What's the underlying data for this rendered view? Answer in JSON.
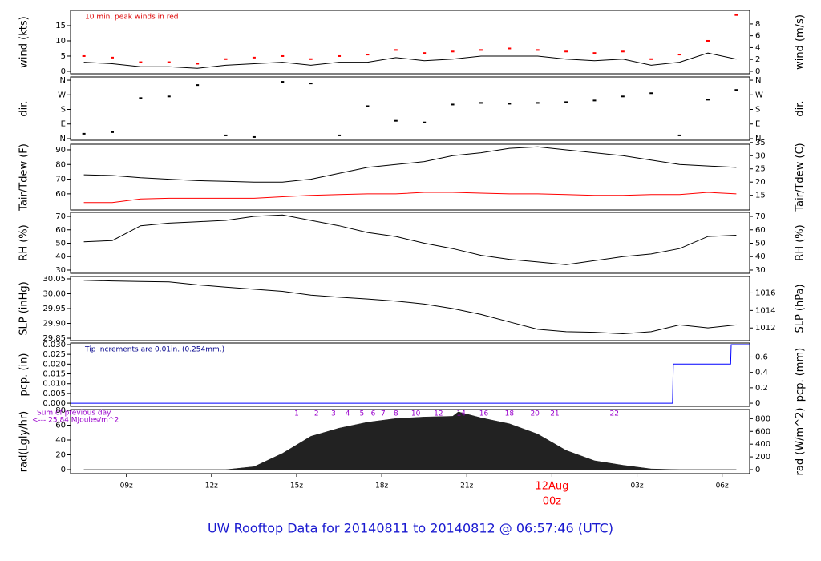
{
  "title": "UW Rooftop Data for 20140811  to  20140812 @ 06:57:46  (UTC)",
  "chart_data": [
    {
      "type": "line",
      "ylabel": "wind (kts)",
      "y2label": "wind (m/s)",
      "annotation": "10 min. peak winds in red",
      "annotation_color": "#dd0000",
      "xlim": [
        7.03,
        30.97
      ],
      "ylim": [
        -0.8,
        20
      ],
      "yticks": [
        0,
        5,
        10,
        15
      ],
      "y2lim": [
        -0.41,
        10.29
      ],
      "y2ticks": [
        0,
        2,
        4,
        6,
        8
      ],
      "x": [
        7.5,
        8.5,
        9.5,
        10.5,
        11.5,
        12.5,
        13.5,
        14.5,
        15.5,
        16.5,
        17.5,
        18.5,
        19.5,
        20.5,
        21.5,
        22.5,
        23.5,
        24.5,
        25.5,
        26.5,
        27.5,
        28.5,
        29.5,
        30.5
      ],
      "series": [
        {
          "name": "wind",
          "type": "line",
          "color": "#000000",
          "values": [
            3,
            2.5,
            1.5,
            1.5,
            1,
            2,
            2.5,
            3,
            2,
            3,
            3,
            4.5,
            3.5,
            4,
            5,
            5,
            5,
            4,
            3.5,
            4,
            2,
            3,
            6,
            4
          ]
        },
        {
          "name": "peak",
          "type": "scatter",
          "color": "#ff0000",
          "values": [
            5,
            4.5,
            3,
            3,
            2.5,
            4,
            4.5,
            5,
            4,
            5,
            5.5,
            7,
            6,
            6.5,
            7,
            7.5,
            7,
            6.5,
            6,
            6.5,
            4,
            5.5,
            10,
            18.5
          ]
        }
      ]
    },
    {
      "type": "scatter",
      "ylabel": "dir.",
      "y2label": "dir.",
      "xlim": [
        7.03,
        30.97
      ],
      "ylim": [
        -10,
        380
      ],
      "yticks": [
        {
          "value": 360,
          "label": "N"
        },
        {
          "value": 270,
          "label": "W"
        },
        {
          "value": 180,
          "label": "S"
        },
        {
          "value": 90,
          "label": "E"
        },
        {
          "value": 0,
          "label": "N"
        }
      ],
      "y2lim": [
        -10,
        380
      ],
      "y2ticks": [
        {
          "value": 360,
          "label": "N"
        },
        {
          "value": 270,
          "label": "W"
        },
        {
          "value": 180,
          "label": "S"
        },
        {
          "value": 90,
          "label": "E"
        },
        {
          "value": 0,
          "label": "N"
        }
      ],
      "x": [
        7.5,
        8.5,
        9.5,
        10.5,
        11.5,
        12.5,
        13.5,
        14.5,
        15.5,
        16.5,
        17.5,
        18.5,
        19.5,
        20.5,
        21.5,
        22.5,
        23.5,
        24.5,
        25.5,
        26.5,
        27.5,
        28.5,
        29.5,
        30.5
      ],
      "series": [
        {
          "name": "dir",
          "type": "scatter",
          "color": "#000000",
          "values": [
            30,
            40,
            250,
            260,
            330,
            20,
            10,
            350,
            340,
            20,
            200,
            110,
            100,
            210,
            220,
            215,
            220,
            225,
            235,
            260,
            280,
            20,
            240,
            300
          ]
        }
      ]
    },
    {
      "type": "line",
      "ylabel": "Tair/Tdew (F)",
      "y2label": "Tair/Tdew (C)",
      "xlim": [
        7.03,
        30.97
      ],
      "ylim": [
        49,
        93.8
      ],
      "yticks": [
        60,
        70,
        80,
        90
      ],
      "y2lim": [
        9.44,
        34.33
      ],
      "y2ticks": [
        15,
        20,
        25,
        30,
        35
      ],
      "x": [
        7.5,
        8.5,
        9.5,
        10.5,
        11.5,
        12.5,
        13.5,
        14.5,
        15.5,
        16.5,
        17.5,
        18.5,
        19.5,
        20.5,
        21.5,
        22.5,
        23.5,
        24.5,
        25.5,
        26.5,
        27.5,
        28.5,
        29.5,
        30.5
      ],
      "series": [
        {
          "name": "Tair",
          "type": "line",
          "color": "#000000",
          "values": [
            73,
            72.5,
            71,
            70,
            69,
            68.5,
            68,
            68,
            70,
            74,
            78,
            80,
            82,
            86,
            88,
            91,
            92,
            90,
            88,
            86,
            83,
            80,
            79,
            78
          ]
        },
        {
          "name": "Tdew",
          "type": "line",
          "color": "#ff0000",
          "values": [
            54,
            54,
            56.5,
            57,
            57,
            57,
            57,
            58,
            59,
            59.5,
            60,
            60,
            61,
            61,
            60.5,
            60,
            60,
            59.5,
            59,
            59,
            59.5,
            59.5,
            61,
            60
          ]
        }
      ]
    },
    {
      "type": "line",
      "ylabel": "RH (%)",
      "y2label": "RH (%)",
      "xlim": [
        7.03,
        30.97
      ],
      "ylim": [
        27.6,
        73
      ],
      "yticks": [
        30,
        40,
        50,
        60,
        70
      ],
      "y2lim": [
        27.6,
        73
      ],
      "y2ticks": [
        30,
        40,
        50,
        60,
        70
      ],
      "x": [
        7.5,
        8.5,
        9.5,
        10.5,
        11.5,
        12.5,
        13.5,
        14.5,
        15.5,
        16.5,
        17.5,
        18.5,
        19.5,
        20.5,
        21.5,
        22.5,
        23.5,
        24.5,
        25.5,
        26.5,
        27.5,
        28.5,
        29.5,
        30.5
      ],
      "series": [
        {
          "name": "RH",
          "type": "line",
          "color": "#000000",
          "values": [
            51,
            52,
            63,
            65,
            66,
            67,
            70,
            71,
            67,
            63,
            58,
            55,
            50,
            46,
            41,
            38,
            36,
            34,
            37,
            40,
            42,
            46,
            55,
            56
          ]
        }
      ]
    },
    {
      "type": "line",
      "ylabel": "SLP (inHg)",
      "y2label": "SLP (hPa)",
      "xlim": [
        7.03,
        30.97
      ],
      "ylim": [
        29.842,
        30.058
      ],
      "yticks": [
        30.05,
        {
          "value": 30,
          "label": "30.00"
        },
        29.95,
        {
          "value": 29.9,
          "label": "29.90"
        },
        29.85
      ],
      "y2lim": [
        1010.56,
        1017.87
      ],
      "y2ticks": [
        1012,
        1014,
        1016
      ],
      "x": [
        7.5,
        8.5,
        9.5,
        10.5,
        11.5,
        12.5,
        13.5,
        14.5,
        15.5,
        16.5,
        17.5,
        18.5,
        19.5,
        20.5,
        21.5,
        22.5,
        23.5,
        24.5,
        25.5,
        26.5,
        27.5,
        28.5,
        29.5,
        30.5
      ],
      "series": [
        {
          "name": "SLP",
          "type": "line",
          "color": "#000000",
          "values": [
            30.045,
            30.043,
            30.041,
            30.04,
            30.03,
            30.022,
            30.015,
            30.008,
            29.995,
            29.988,
            29.982,
            29.975,
            29.965,
            29.95,
            29.93,
            29.905,
            29.88,
            29.872,
            29.87,
            29.865,
            29.872,
            29.895,
            29.885,
            29.895
          ]
        }
      ]
    },
    {
      "type": "line",
      "ylabel": "pcp. (in)",
      "y2label": "pcp. (mm)",
      "annotation": "Tip increments are 0.01in. (0.254mm.)",
      "annotation_color": "#00008b",
      "xlim": [
        7.03,
        30.97
      ],
      "ylim": [
        -0.0016,
        0.0308
      ],
      "yticks": [
        {
          "value": 0.03,
          "label": "0.030"
        },
        0.025,
        {
          "value": 0.02,
          "label": "0.020"
        },
        0.015,
        {
          "value": 0.01,
          "label": "0.010"
        },
        0.005,
        {
          "value": 0,
          "label": "0.000"
        }
      ],
      "y2lim": [
        -0.041,
        0.782
      ],
      "y2ticks": [
        0,
        0.2,
        0.4,
        0.6
      ],
      "x": [
        7.03,
        28.25,
        28.28,
        30.3,
        30.32,
        30.97
      ],
      "series": [
        {
          "name": "pcp",
          "type": "line",
          "color": "#0000ff",
          "values": [
            0,
            0,
            0.02,
            0.02,
            0.03,
            0.03
          ]
        }
      ]
    },
    {
      "type": "area",
      "ylabel": "rad(Lgly/hr)",
      "y2label": "rad (W/m^2)",
      "annotations": [
        "Sum of previous day",
        "<--- 25.84 MJoules/m^2"
      ],
      "annotation_color": "#9900cc",
      "hour_labels": [
        {
          "x": 15.0,
          "label": "1"
        },
        {
          "x": 15.7,
          "label": "2"
        },
        {
          "x": 16.3,
          "label": "3"
        },
        {
          "x": 16.8,
          "label": "4"
        },
        {
          "x": 17.3,
          "label": "5"
        },
        {
          "x": 17.7,
          "label": "6"
        },
        {
          "x": 18.05,
          "label": "7"
        },
        {
          "x": 18.5,
          "label": "8"
        },
        {
          "x": 19.2,
          "label": "10"
        },
        {
          "x": 20.0,
          "label": "12"
        },
        {
          "x": 20.8,
          "label": "14"
        },
        {
          "x": 21.6,
          "label": "16"
        },
        {
          "x": 22.5,
          "label": "18"
        },
        {
          "x": 23.4,
          "label": "20"
        },
        {
          "x": 24.1,
          "label": "21"
        },
        {
          "x": 26.2,
          "label": "22"
        }
      ],
      "xlim": [
        7.03,
        30.97
      ],
      "xticks": [
        {
          "value": 9,
          "label": "09z"
        },
        {
          "value": 12,
          "label": "12z"
        },
        {
          "value": 15,
          "label": "15z"
        },
        {
          "value": 18,
          "label": "18z"
        },
        {
          "value": 21,
          "label": "21z"
        },
        {
          "value": 27,
          "label": "03z"
        },
        {
          "value": 30,
          "label": "06z"
        }
      ],
      "date_marker": {
        "value": 24,
        "label": "12Aug",
        "sublabel": "00z",
        "color": "#ff0000"
      },
      "ylim": [
        -5.4,
        81.1
      ],
      "yticks": [
        0,
        20,
        40,
        60,
        80
      ],
      "y2lim": [
        -62.8,
        942.7
      ],
      "y2ticks": [
        0,
        200,
        400,
        600,
        800
      ],
      "x": [
        7.5,
        8.5,
        9.5,
        10.5,
        11.5,
        12.5,
        13.5,
        14.5,
        15.5,
        16.5,
        17.5,
        18.5,
        19.5,
        20.5,
        20.7,
        21.5,
        22.5,
        23.5,
        24.5,
        25.5,
        26.5,
        27.5,
        28.5,
        29.5,
        30.5
      ],
      "series": [
        {
          "name": "rad",
          "type": "area",
          "color": "#222222",
          "values": [
            0,
            0,
            0,
            0,
            0,
            0,
            4,
            22,
            45,
            56,
            64,
            69,
            71,
            72,
            78,
            70,
            62,
            48,
            26,
            12,
            6,
            1,
            0,
            0,
            0
          ]
        }
      ]
    }
  ]
}
